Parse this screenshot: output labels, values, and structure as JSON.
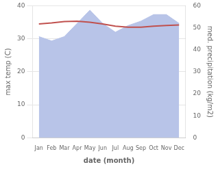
{
  "chart_data": {
    "type": "line",
    "xlabel": "date (month)",
    "ylabel": "max temp (C)",
    "y2label": "med. precipitation (kg/m2)",
    "categories": [
      "Jan",
      "Feb",
      "Mar",
      "Apr",
      "May",
      "Jun",
      "Jul",
      "Aug",
      "Sep",
      "Oct",
      "Nov",
      "Dec"
    ],
    "series": [
      {
        "type": "line",
        "color": "#c0504d",
        "values": [
          34.5,
          34.8,
          35.2,
          35.3,
          35.0,
          34.5,
          33.8,
          33.5,
          33.5,
          33.8,
          34.0,
          34.2
        ]
      },
      {
        "type": "area",
        "axis": "y2",
        "color": "#b8c4e8",
        "values": [
          46.0,
          44.0,
          46.0,
          52.0,
          58.0,
          52.0,
          48.0,
          51.0,
          53.0,
          56.0,
          56.0,
          52.0
        ]
      }
    ],
    "ylim": [
      0,
      40
    ],
    "yticks": [
      0,
      10,
      20,
      30,
      40
    ],
    "y2lim": [
      0,
      60
    ],
    "y2ticks": [
      0,
      10,
      20,
      30,
      40,
      50,
      60
    ],
    "grid": true
  }
}
